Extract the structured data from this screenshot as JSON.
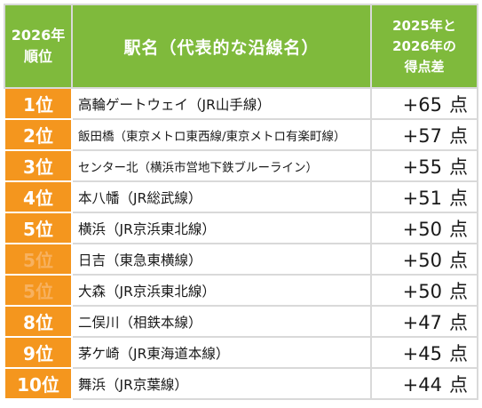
{
  "header": {
    "rank_line1": "2026年",
    "rank_line2": "順位",
    "station": "駅名（代表的な沿線名）",
    "diff_line1": "2025年と",
    "diff_line2": "2026年の",
    "diff_line3": "得点差"
  },
  "point_unit": "点",
  "rows": [
    {
      "rank": "1位",
      "station": "高輪ゲートウェイ（JR山手線）",
      "diff": "+65"
    },
    {
      "rank": "2位",
      "station": "飯田橋（東京メトロ東西線/東京メトロ有楽町線）",
      "diff": "+57"
    },
    {
      "rank": "3位",
      "station": "センター北（横浜市営地下鉄ブルーライン）",
      "diff": "+55"
    },
    {
      "rank": "4位",
      "station": "本八幡（JR総武線）",
      "diff": "+51"
    },
    {
      "rank": "5位",
      "station": "横浜（JR京浜東北線）",
      "diff": "+50"
    },
    {
      "rank": "5位",
      "station": "日吉（東急東横線）",
      "diff": "+50"
    },
    {
      "rank": "5位",
      "station": "大森（JR京浜東北線）",
      "diff": "+50"
    },
    {
      "rank": "8位",
      "station": "二俣川（相鉄本線）",
      "diff": "+47"
    },
    {
      "rank": "9位",
      "station": "茅ケ崎（JR東海道本線）",
      "diff": "+45"
    },
    {
      "rank": "10位",
      "station": "舞浜（JR京葉線）",
      "diff": "+44"
    }
  ]
}
